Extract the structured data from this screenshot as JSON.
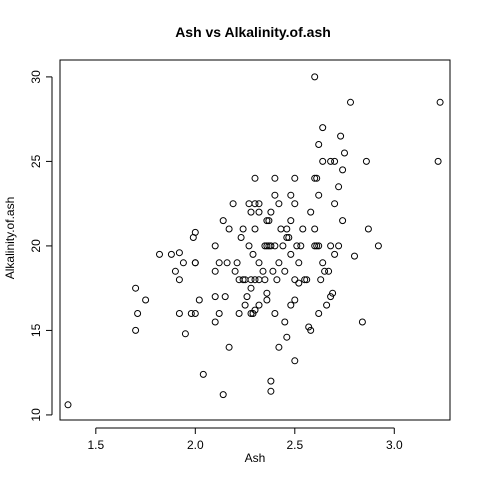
{
  "chart_data": {
    "type": "scatter",
    "title": "Ash vs Alkalinity.of.ash",
    "xlabel": "Ash",
    "ylabel": "Alkalinity.of.ash",
    "xlim": [
      1.32,
      3.28
    ],
    "ylim": [
      9.7,
      31.0
    ],
    "xticks": [
      1.5,
      2.0,
      2.5,
      3.0
    ],
    "xtick_labels": [
      "1.5",
      "2.0",
      "2.5",
      "3.0"
    ],
    "yticks": [
      10,
      15,
      20,
      25,
      30
    ],
    "ytick_labels": [
      "10",
      "15",
      "20",
      "25",
      "30"
    ],
    "grid": false,
    "marker": "open-circle",
    "points": [
      [
        1.36,
        10.6
      ],
      [
        1.7,
        17.5
      ],
      [
        1.7,
        15.0
      ],
      [
        1.71,
        16.0
      ],
      [
        1.75,
        16.8
      ],
      [
        1.82,
        19.5
      ],
      [
        1.88,
        19.5
      ],
      [
        1.9,
        18.5
      ],
      [
        1.92,
        19.6
      ],
      [
        1.92,
        16.0
      ],
      [
        1.92,
        18.0
      ],
      [
        1.94,
        19.0
      ],
      [
        1.95,
        14.8
      ],
      [
        1.98,
        16.0
      ],
      [
        1.99,
        20.5
      ],
      [
        2.0,
        20.8
      ],
      [
        2.0,
        19.0
      ],
      [
        2.0,
        19.0
      ],
      [
        2.0,
        16.0
      ],
      [
        2.02,
        16.8
      ],
      [
        2.04,
        12.4
      ],
      [
        2.1,
        18.5
      ],
      [
        2.1,
        20.0
      ],
      [
        2.1,
        17.0
      ],
      [
        2.1,
        15.5
      ],
      [
        2.12,
        19.0
      ],
      [
        2.12,
        16.0
      ],
      [
        2.14,
        11.2
      ],
      [
        2.14,
        21.5
      ],
      [
        2.15,
        17.0
      ],
      [
        2.16,
        19.0
      ],
      [
        2.17,
        21.0
      ],
      [
        2.17,
        14.0
      ],
      [
        2.19,
        22.5
      ],
      [
        2.2,
        18.5
      ],
      [
        2.21,
        19.0
      ],
      [
        2.22,
        16.0
      ],
      [
        2.22,
        18.0
      ],
      [
        2.23,
        20.5
      ],
      [
        2.24,
        18.0
      ],
      [
        2.24,
        21.0
      ],
      [
        2.25,
        18.0
      ],
      [
        2.25,
        16.5
      ],
      [
        2.26,
        17.0
      ],
      [
        2.27,
        20.0
      ],
      [
        2.27,
        22.5
      ],
      [
        2.28,
        22.0
      ],
      [
        2.28,
        16.0
      ],
      [
        2.28,
        17.5
      ],
      [
        2.28,
        18.0
      ],
      [
        2.29,
        16.0
      ],
      [
        2.29,
        19.5
      ],
      [
        2.3,
        22.5
      ],
      [
        2.3,
        24.0
      ],
      [
        2.3,
        16.2
      ],
      [
        2.3,
        21.0
      ],
      [
        2.3,
        18.0
      ],
      [
        2.32,
        22.5
      ],
      [
        2.32,
        18.0
      ],
      [
        2.32,
        16.5
      ],
      [
        2.32,
        22.0
      ],
      [
        2.32,
        19.0
      ],
      [
        2.34,
        18.5
      ],
      [
        2.35,
        20.0
      ],
      [
        2.35,
        18.0
      ],
      [
        2.36,
        20.0
      ],
      [
        2.36,
        21.5
      ],
      [
        2.36,
        17.2
      ],
      [
        2.36,
        16.8
      ],
      [
        2.37,
        20.0
      ],
      [
        2.37,
        21.5
      ],
      [
        2.38,
        22.0
      ],
      [
        2.38,
        20.0
      ],
      [
        2.38,
        12.0
      ],
      [
        2.38,
        11.4
      ],
      [
        2.39,
        18.5
      ],
      [
        2.4,
        24.0
      ],
      [
        2.4,
        23.0
      ],
      [
        2.4,
        20.0
      ],
      [
        2.4,
        16.0
      ],
      [
        2.41,
        18.0
      ],
      [
        2.42,
        19.0
      ],
      [
        2.42,
        14.0
      ],
      [
        2.42,
        22.5
      ],
      [
        2.43,
        21.0
      ],
      [
        2.44,
        20.0
      ],
      [
        2.45,
        18.5
      ],
      [
        2.45,
        15.5
      ],
      [
        2.46,
        14.6
      ],
      [
        2.46,
        21.0
      ],
      [
        2.46,
        20.5
      ],
      [
        2.47,
        20.5
      ],
      [
        2.48,
        19.5
      ],
      [
        2.48,
        16.5
      ],
      [
        2.48,
        21.5
      ],
      [
        2.48,
        23.0
      ],
      [
        2.5,
        24.0
      ],
      [
        2.5,
        22.5
      ],
      [
        2.5,
        16.8
      ],
      [
        2.5,
        18.0
      ],
      [
        2.5,
        13.2
      ],
      [
        2.51,
        20.0
      ],
      [
        2.52,
        17.8
      ],
      [
        2.52,
        19.0
      ],
      [
        2.53,
        20.0
      ],
      [
        2.54,
        21.0
      ],
      [
        2.55,
        18.0
      ],
      [
        2.56,
        18.0
      ],
      [
        2.57,
        15.2
      ],
      [
        2.58,
        15.0
      ],
      [
        2.58,
        22.0
      ],
      [
        2.6,
        24.0
      ],
      [
        2.6,
        30.0
      ],
      [
        2.6,
        20.0
      ],
      [
        2.6,
        21.0
      ],
      [
        2.61,
        20.0
      ],
      [
        2.61,
        24.0
      ],
      [
        2.62,
        16.0
      ],
      [
        2.62,
        26.0
      ],
      [
        2.62,
        23.0
      ],
      [
        2.62,
        20.0
      ],
      [
        2.63,
        18.0
      ],
      [
        2.64,
        19.0
      ],
      [
        2.64,
        27.0
      ],
      [
        2.64,
        25.0
      ],
      [
        2.65,
        18.5
      ],
      [
        2.66,
        16.5
      ],
      [
        2.67,
        18.5
      ],
      [
        2.68,
        25.0
      ],
      [
        2.68,
        17.0
      ],
      [
        2.68,
        20.0
      ],
      [
        2.69,
        17.2
      ],
      [
        2.7,
        22.5
      ],
      [
        2.7,
        25.0
      ],
      [
        2.7,
        19.5
      ],
      [
        2.72,
        20.0
      ],
      [
        2.72,
        23.5
      ],
      [
        2.73,
        26.5
      ],
      [
        2.74,
        21.5
      ],
      [
        2.74,
        24.5
      ],
      [
        2.75,
        25.5
      ],
      [
        2.78,
        28.5
      ],
      [
        2.8,
        19.4
      ],
      [
        2.84,
        15.5
      ],
      [
        2.86,
        25.0
      ],
      [
        2.87,
        21.0
      ],
      [
        2.92,
        20.0
      ],
      [
        3.22,
        25.0
      ],
      [
        3.23,
        28.5
      ]
    ]
  }
}
